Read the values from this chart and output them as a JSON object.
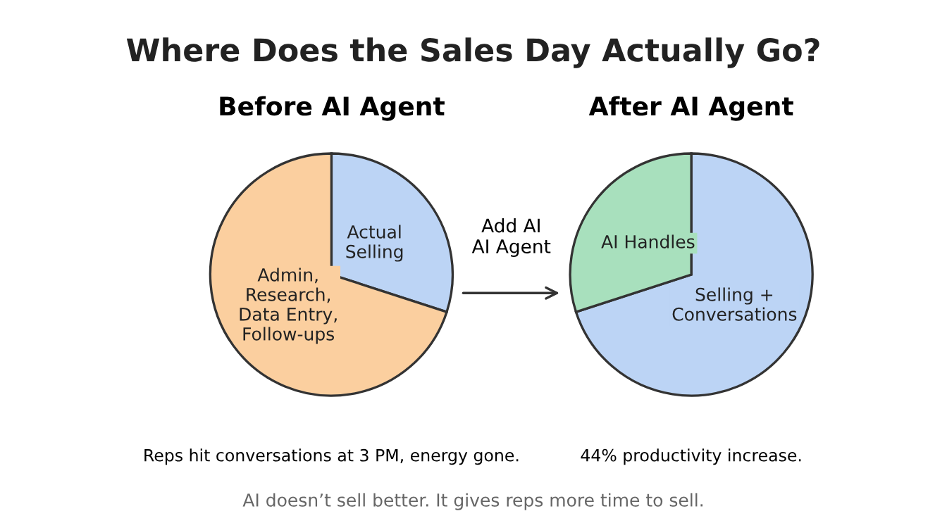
{
  "chart_data": [
    {
      "type": "pie",
      "title": "Before AI Agent",
      "categories": [
        "Actual\nSelling",
        "Admin,\nResearch,\nData Entry,\nFollow-ups"
      ],
      "values": [
        30,
        70
      ],
      "colors": [
        "#bcd4f5",
        "#fbcf9f"
      ],
      "annotations": [
        "Reps hit conversations at 3 PM, energy gone."
      ]
    },
    {
      "type": "pie",
      "title": "After AI Agent",
      "categories": [
        "Selling +\nConversations",
        "AI Handles"
      ],
      "values": [
        70,
        30
      ],
      "colors": [
        "#bcd4f5",
        "#a8e0bd"
      ],
      "annotations": [
        "44% productivity increase."
      ]
    },
    {
      "type": "other",
      "title": "Where Does the Sales Day Actually Go?",
      "annotations": [
        "Add AI\nAI Agent",
        "AI doesn’t sell better. It gives reps more time to sell."
      ]
    }
  ]
}
